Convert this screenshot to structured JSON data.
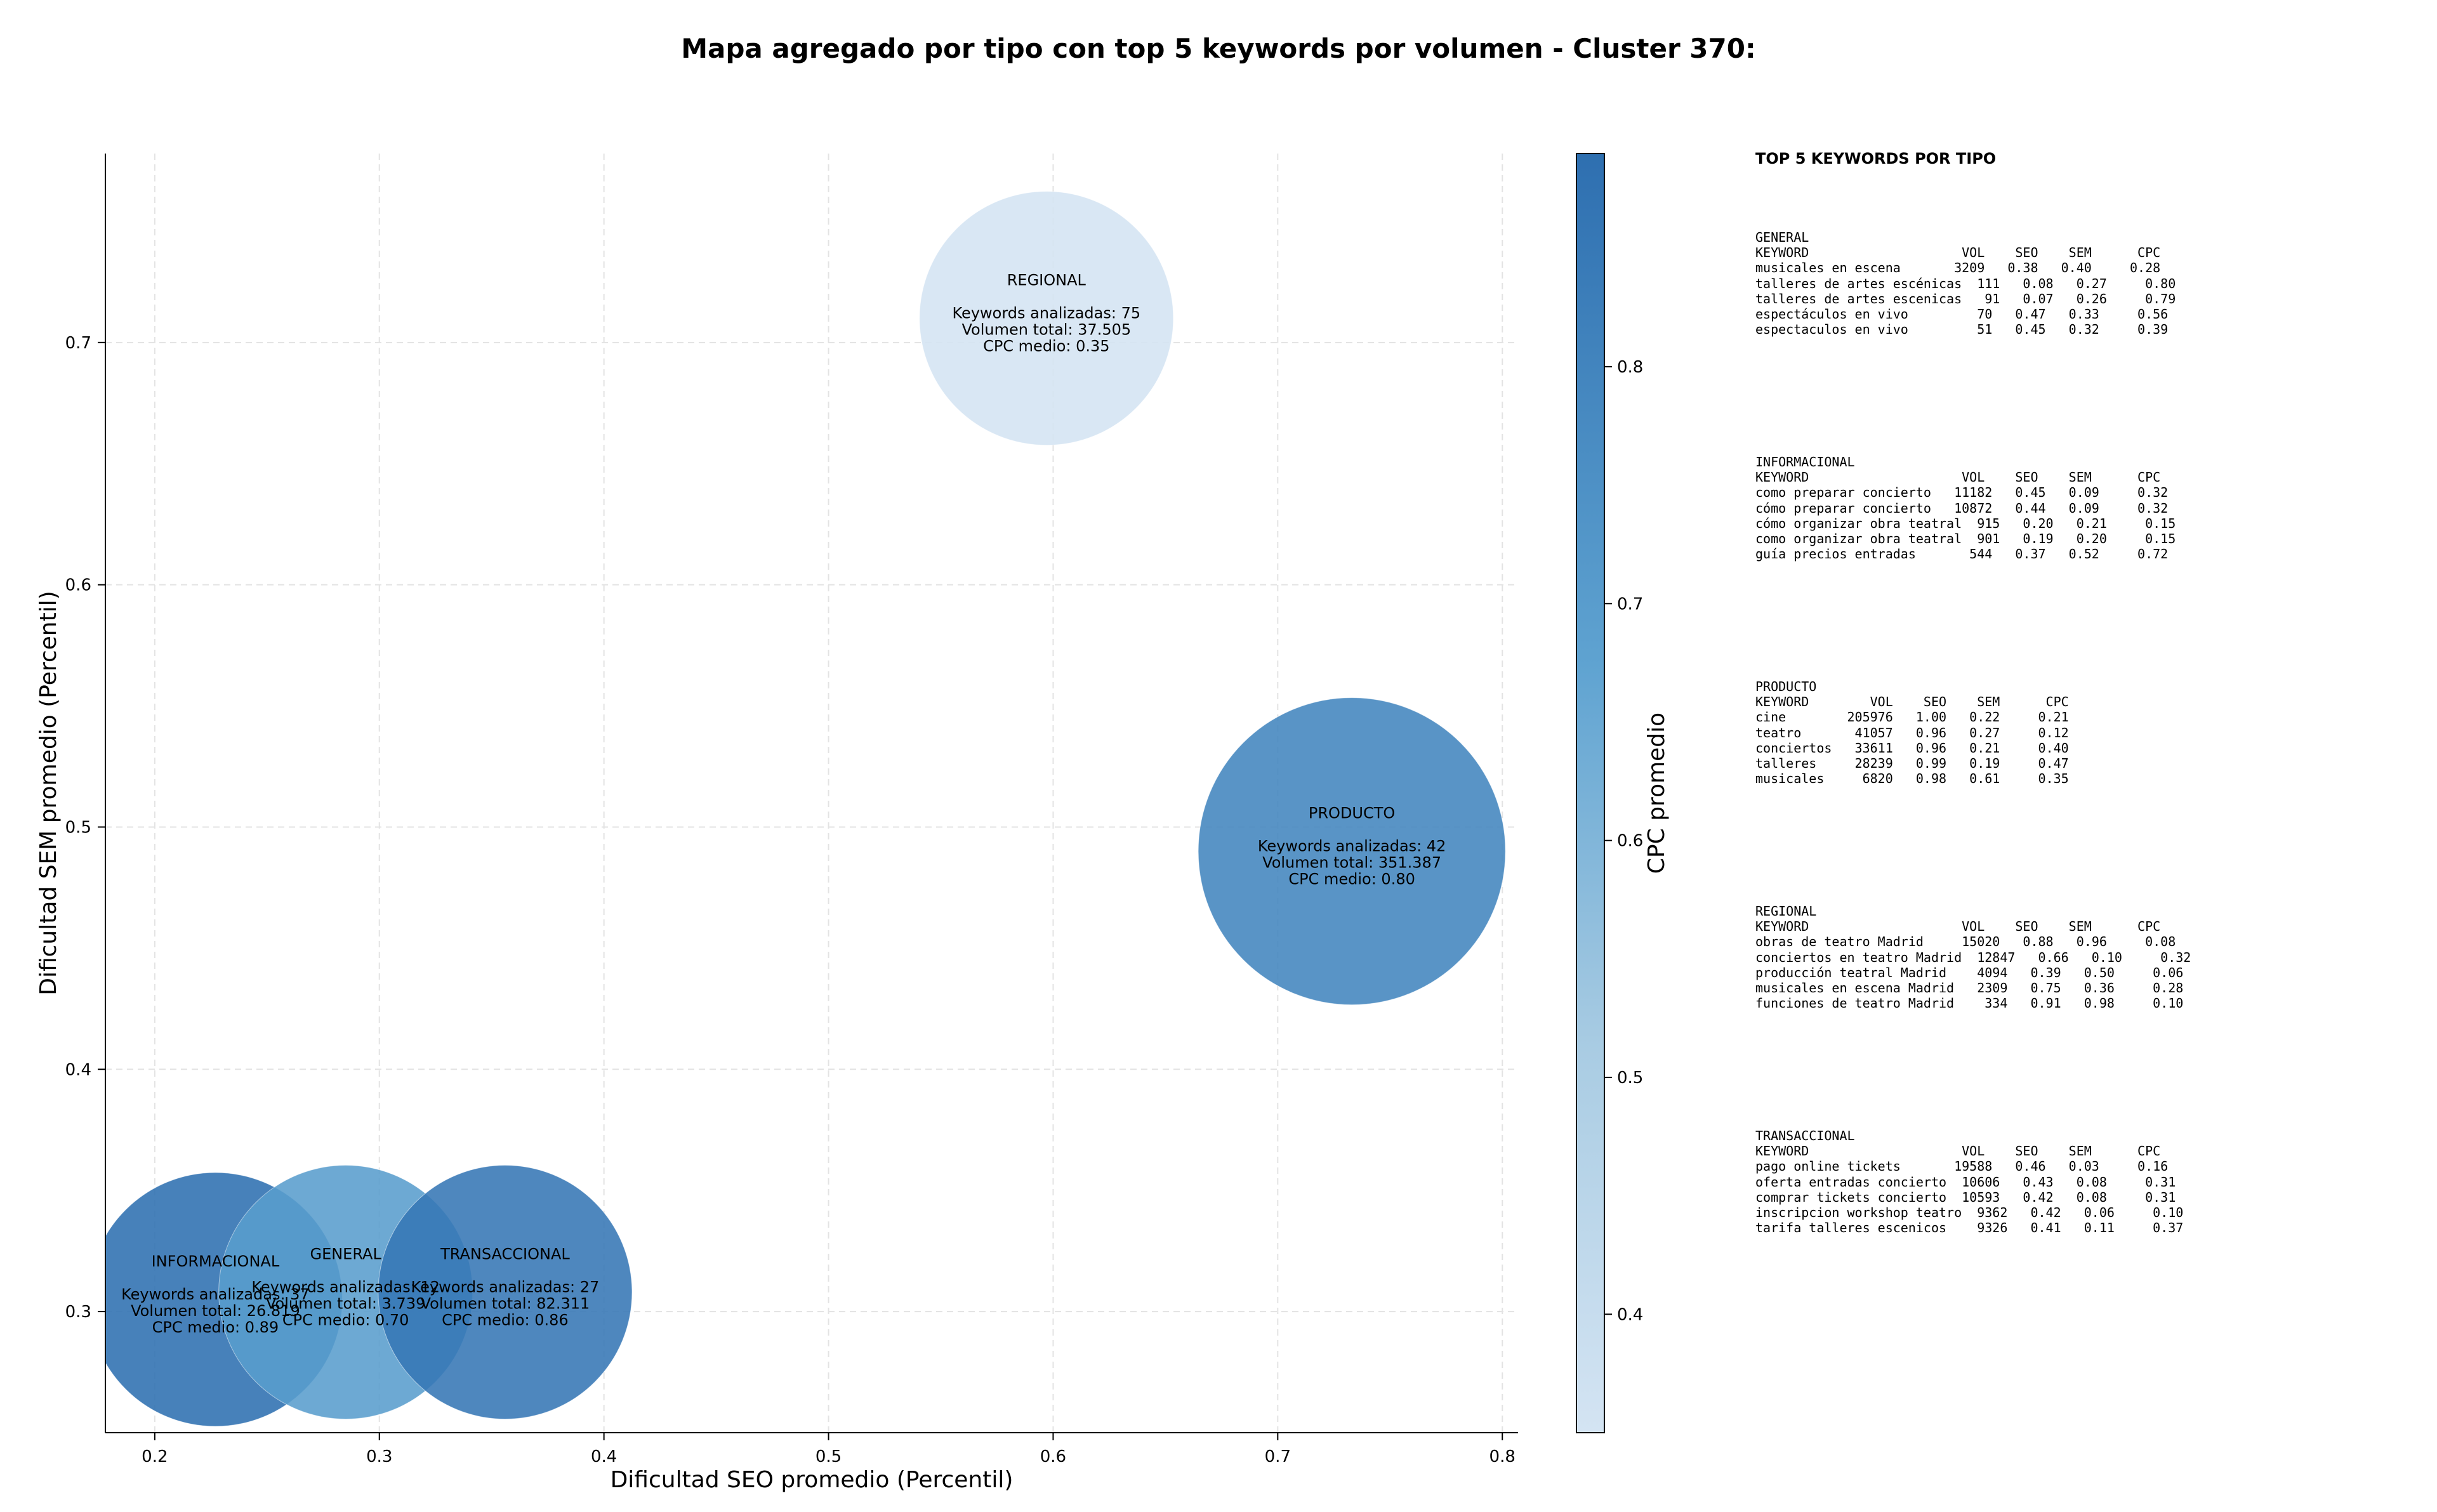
{
  "title": "Mapa agregado por tipo con top 5 keywords por volumen - Cluster 370:",
  "chart_data": {
    "type": "scatter",
    "title": "Mapa agregado por tipo con top 5 keywords por volumen - Cluster 370:",
    "xlabel": "Dificultad SEO promedio (Percentil)",
    "ylabel": "Dificultad SEM promedio (Percentil)",
    "colorbar_label": "CPC promedio",
    "xlim": [
      0.178,
      0.807
    ],
    "ylim": [
      0.25,
      0.778
    ],
    "xticks": [
      "0.2",
      "0.3",
      "0.4",
      "0.5",
      "0.6",
      "0.7",
      "0.8"
    ],
    "yticks": [
      "0.3",
      "0.4",
      "0.5",
      "0.6",
      "0.7"
    ],
    "colorbar_ticks": [
      "0.4",
      "0.5",
      "0.6",
      "0.7",
      "0.8"
    ],
    "colorbar_range": [
      0.35,
      0.89
    ],
    "grid": true,
    "points": [
      {
        "name": "REGIONAL",
        "x": 0.597,
        "y": 0.71,
        "keywords_line": "Keywords analizadas: 75",
        "volume_line": "Volumen total: 37.505",
        "cpc_line": "CPC medio: 0.35",
        "cpc": 0.35,
        "volume": 37505,
        "count": 75
      },
      {
        "name": "PRODUCTO",
        "x": 0.733,
        "y": 0.49,
        "keywords_line": "Keywords analizadas: 42",
        "volume_line": "Volumen total: 351.387",
        "cpc_line": "CPC medio: 0.80",
        "cpc": 0.8,
        "volume": 351387,
        "count": 42
      },
      {
        "name": "INFORMACIONAL",
        "x": 0.227,
        "y": 0.305,
        "keywords_line": "Keywords analizadas: 37",
        "volume_line": "Volumen total: 26.819",
        "cpc_line": "CPC medio: 0.89",
        "cpc": 0.89,
        "volume": 26819,
        "count": 37
      },
      {
        "name": "GENERAL",
        "x": 0.285,
        "y": 0.308,
        "keywords_line": "Keywords analizadas: 12",
        "volume_line": "Volumen total: 3.739",
        "cpc_line": "CPC medio: 0.70",
        "cpc": 0.7,
        "volume": 3739,
        "count": 12
      },
      {
        "name": "TRANSACCIONAL",
        "x": 0.356,
        "y": 0.308,
        "keywords_line": "Keywords analizadas: 27",
        "volume_line": "Volumen total: 82.311",
        "cpc_line": "CPC medio: 0.86",
        "cpc": 0.86,
        "volume": 82311,
        "count": 27
      }
    ]
  },
  "top5": {
    "header": "TOP 5 KEYWORDS POR TIPO",
    "groups": [
      {
        "name": "GENERAL",
        "rows": [
          "KEYWORD                    VOL    SEO    SEM      CPC",
          "musicales en escena       3209   0.38   0.40     0.28",
          "talleres de artes escénicas  111   0.08   0.27     0.80",
          "talleres de artes escenicas   91   0.07   0.26     0.79",
          "espectáculos en vivo         70   0.47   0.33     0.56",
          "espectaculos en vivo         51   0.45   0.32     0.39"
        ]
      },
      {
        "name": "INFORMACIONAL",
        "rows": [
          "KEYWORD                    VOL    SEO    SEM      CPC",
          "como preparar concierto   11182   0.45   0.09     0.32",
          "cómo preparar concierto   10872   0.44   0.09     0.32",
          "cómo organizar obra teatral  915   0.20   0.21     0.15",
          "como organizar obra teatral  901   0.19   0.20     0.15",
          "guía precios entradas       544   0.37   0.52     0.72"
        ]
      },
      {
        "name": "PRODUCTO",
        "rows": [
          "KEYWORD        VOL    SEO    SEM      CPC",
          "cine        205976   1.00   0.22     0.21",
          "teatro       41057   0.96   0.27     0.12",
          "conciertos   33611   0.96   0.21     0.40",
          "talleres     28239   0.99   0.19     0.47",
          "musicales     6820   0.98   0.61     0.35"
        ]
      },
      {
        "name": "REGIONAL",
        "rows": [
          "KEYWORD                    VOL    SEO    SEM      CPC",
          "obras de teatro Madrid     15020   0.88   0.96     0.08",
          "conciertos en teatro Madrid  12847   0.66   0.10     0.32",
          "producción teatral Madrid    4094   0.39   0.50     0.06",
          "musicales en escena Madrid   2309   0.75   0.36     0.28",
          "funciones de teatro Madrid    334   0.91   0.98     0.10"
        ]
      },
      {
        "name": "TRANSACCIONAL",
        "rows": [
          "KEYWORD                    VOL    SEO    SEM      CPC",
          "pago online tickets       19588   0.46   0.03     0.16",
          "oferta entradas concierto  10606   0.43   0.08     0.31",
          "comprar tickets concierto  10593   0.42   0.08     0.31",
          "inscripcion workshop teatro  9362   0.42   0.06     0.10",
          "tarifa talleres escenicos    9326   0.41   0.11     0.37"
        ]
      }
    ]
  }
}
